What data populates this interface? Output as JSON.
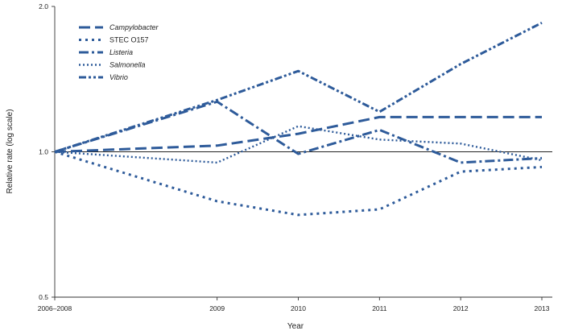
{
  "chart_data": {
    "type": "line",
    "title": "",
    "xlabel": "Year",
    "ylabel": "Relative rate (log scale)",
    "y_scale": "log",
    "ylim": [
      0.5,
      2.0
    ],
    "y_ticks": [
      "0.5",
      "1.0",
      "2.0"
    ],
    "y_tick_values": [
      0.5,
      1.0,
      2.0
    ],
    "reference_line": 1.0,
    "categories": [
      "2006–2008",
      "2009",
      "2010",
      "2011",
      "2012",
      "2013"
    ],
    "x_positions": [
      0,
      2,
      3,
      4,
      5,
      6
    ],
    "grid": false,
    "legend_position": "top-left",
    "color": "#2e5b9a",
    "series": [
      {
        "name": "Campylobacter",
        "italic": true,
        "dash": "long-dash",
        "values": [
          1.0,
          1.03,
          1.09,
          1.18,
          1.18,
          1.18
        ]
      },
      {
        "name": "STEC O157",
        "italic": false,
        "dash": "dotted",
        "values": [
          1.0,
          0.79,
          0.74,
          0.76,
          0.91,
          0.93
        ]
      },
      {
        "name": "Listeria",
        "italic": true,
        "dash": "dash-dot",
        "values": [
          1.0,
          1.27,
          0.99,
          1.11,
          0.95,
          0.97
        ]
      },
      {
        "name": "Salmonella",
        "italic": true,
        "dash": "fine-dotted",
        "values": [
          1.0,
          0.95,
          1.13,
          1.06,
          1.04,
          0.96
        ]
      },
      {
        "name": "Vibrio",
        "italic": true,
        "dash": "dash-dot-dot",
        "values": [
          1.0,
          1.28,
          1.47,
          1.21,
          1.52,
          1.85
        ]
      }
    ]
  }
}
